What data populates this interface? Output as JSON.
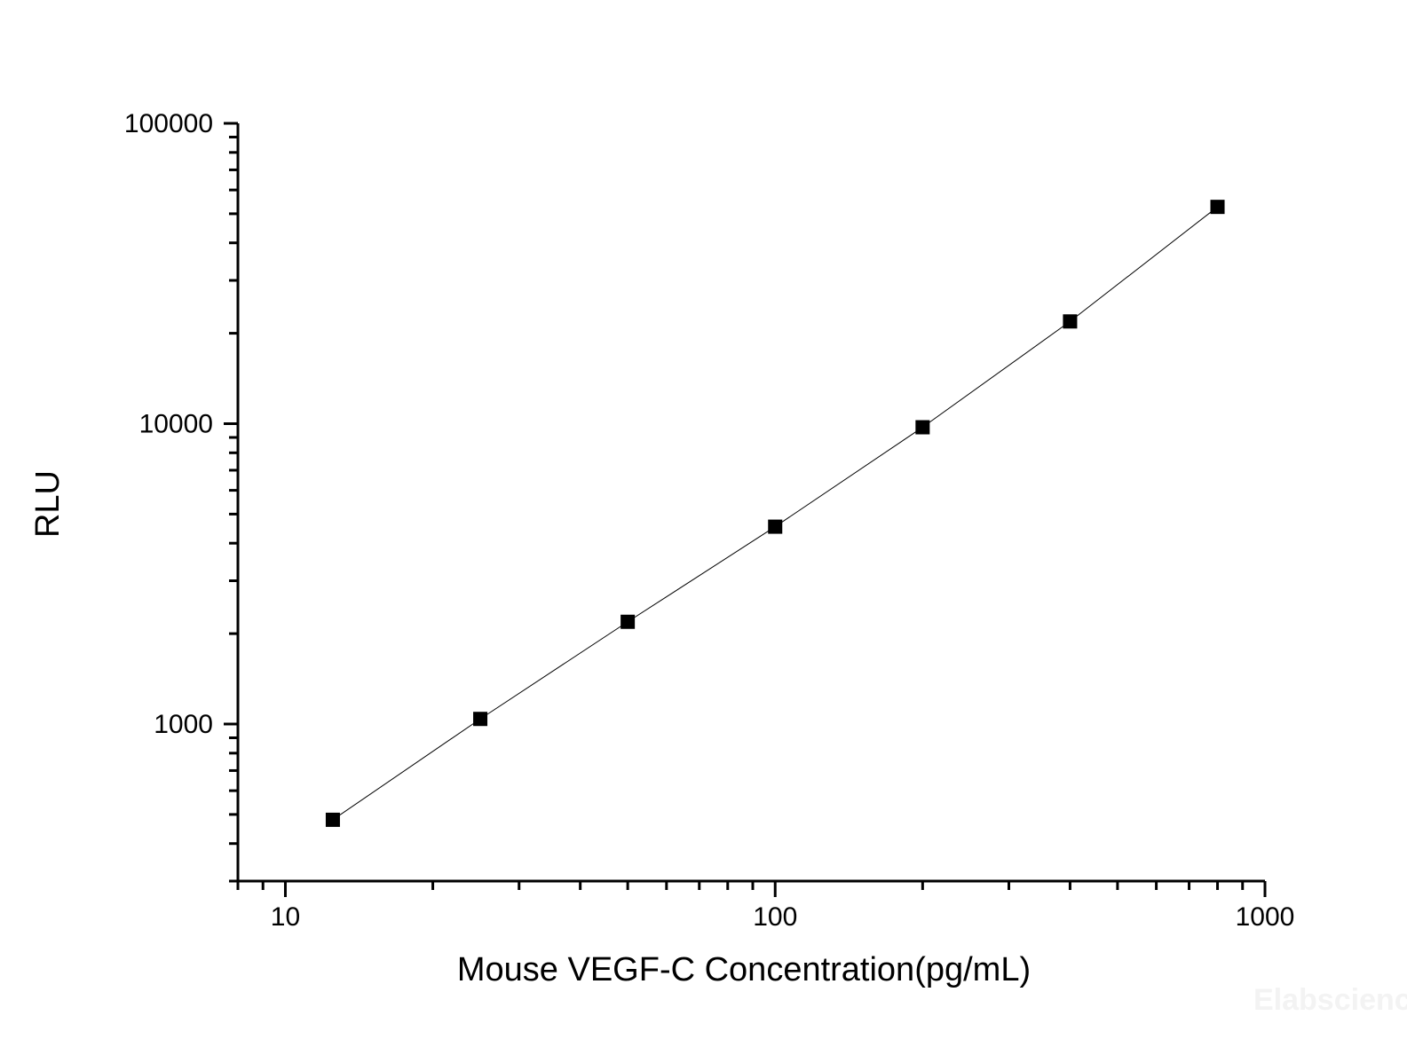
{
  "chart_data": {
    "type": "line",
    "xlabel": "Mouse VEGF-C Concentration(pg/mL)",
    "ylabel": "RLU",
    "x_scale": "log",
    "y_scale": "log",
    "xlim": [
      8,
      1000
    ],
    "ylim": [
      300,
      100000
    ],
    "x_ticks": [
      10,
      100,
      1000
    ],
    "x_tick_labels": [
      "10",
      "100",
      "1000"
    ],
    "y_ticks": [
      1000,
      10000,
      100000
    ],
    "y_tick_labels": [
      "1000",
      "10000",
      "100000"
    ],
    "grid": false,
    "marker": "square",
    "color": "#000000",
    "series": [
      {
        "x": [
          12.5,
          25,
          50,
          100,
          200,
          400,
          800
        ],
        "y": [
          480,
          1040,
          2190,
          4540,
          9730,
          21900,
          52700
        ]
      }
    ],
    "watermark": "Elabscience"
  }
}
